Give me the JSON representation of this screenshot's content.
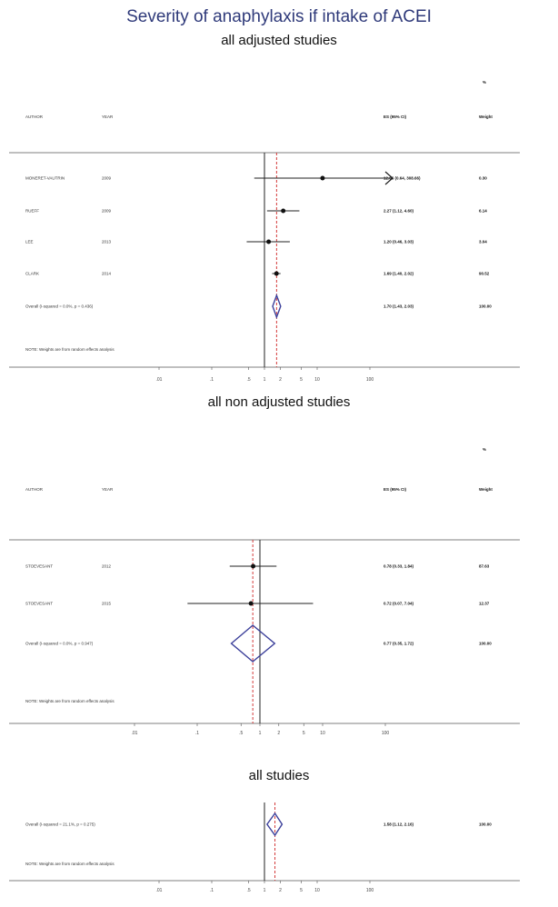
{
  "title": "Severity of anaphylaxis if intake of ACEI",
  "chart_data": [
    {
      "type": "forest",
      "subtitle": "all adjusted studies",
      "columns": {
        "author": "AUTHOR",
        "year": "YEAR",
        "es": "ES (95% CI)",
        "pct": "%",
        "weight": "Weight"
      },
      "x_ticks": [
        0.01,
        0.1,
        0.5,
        1,
        2,
        5,
        10,
        100
      ],
      "x_tick_labels": [
        ".01",
        ".1",
        ".5",
        "1",
        "2",
        "5",
        "10",
        "100"
      ],
      "null_value": 1,
      "overall_es": 1.7,
      "studies": [
        {
          "author": "MONERET-VAUTRIN",
          "year": "2009",
          "es": 12.66,
          "lo": 0.64,
          "hi": 308.66,
          "ci_text": "12.66 (0.64, 308.66)",
          "weight": "0.30"
        },
        {
          "author": "RUEFF",
          "year": "2009",
          "es": 2.27,
          "lo": 1.12,
          "hi": 4.6,
          "ci_text": "2.27 (1.12, 4.60)",
          "weight": "6.14"
        },
        {
          "author": "LEE",
          "year": "2013",
          "es": 1.2,
          "lo": 0.46,
          "hi": 3.03,
          "ci_text": "1.20 (0.46, 3.03)",
          "weight": "3.04"
        },
        {
          "author": "CLARK",
          "year": "2014",
          "es": 1.69,
          "lo": 1.4,
          "hi": 2.02,
          "ci_text": "1.69 (1.40, 2.02)",
          "weight": "90.52"
        }
      ],
      "overall": {
        "label": "Overall  (I-squared = 0.0%, p = 0.436)",
        "es": 1.7,
        "lo": 1.43,
        "hi": 2.03,
        "ci_text": "1.70 (1.43, 2.03)",
        "weight": "100.00"
      },
      "note": "NOTE: Weights are from random effects analysis"
    },
    {
      "type": "forest",
      "subtitle": "all non adjusted studies",
      "columns": {
        "author": "AUTHOR",
        "year": "YEAR",
        "es": "ES (95% CI)",
        "pct": "%",
        "weight": "Weight"
      },
      "x_ticks": [
        0.01,
        0.1,
        0.5,
        1,
        2,
        5,
        10,
        100
      ],
      "x_tick_labels": [
        ".01",
        ".1",
        ".5",
        "1",
        "2",
        "5",
        "10",
        "100"
      ],
      "null_value": 1,
      "overall_es": 0.77,
      "studies": [
        {
          "author": "STOEVESANT",
          "year": "2012",
          "es": 0.78,
          "lo": 0.33,
          "hi": 1.84,
          "ci_text": "0.78 (0.33, 1.84)",
          "weight": "87.63"
        },
        {
          "author": "STOEVESANT",
          "year": "2015",
          "es": 0.72,
          "lo": 0.07,
          "hi": 7.04,
          "ci_text": "0.72 (0.07, 7.04)",
          "weight": "12.37"
        }
      ],
      "overall": {
        "label": "Overall  (I-squared = 0.0%, p = 0.947)",
        "es": 0.77,
        "lo": 0.35,
        "hi": 1.72,
        "ci_text": "0.77 (0.35, 1.72)",
        "weight": "100.00"
      },
      "note": "NOTE: Weights are from random effects analysis"
    },
    {
      "type": "forest",
      "subtitle": "all studies",
      "x_ticks": [
        0.01,
        0.1,
        0.5,
        1,
        2,
        5,
        10,
        100
      ],
      "x_tick_labels": [
        ".01",
        ".1",
        ".5",
        "1",
        "2",
        "5",
        "10",
        "100"
      ],
      "null_value": 1,
      "overall_es": 1.58,
      "studies": [],
      "overall": {
        "label": "Overall  (I-squared = 21.1%, p = 0.275)",
        "es": 1.58,
        "lo": 1.12,
        "hi": 2.16,
        "ci_text": "1.58 (1.12, 2.16)",
        "weight": "100.00"
      },
      "note": "NOTE: Weights are from random effects analysis"
    }
  ]
}
